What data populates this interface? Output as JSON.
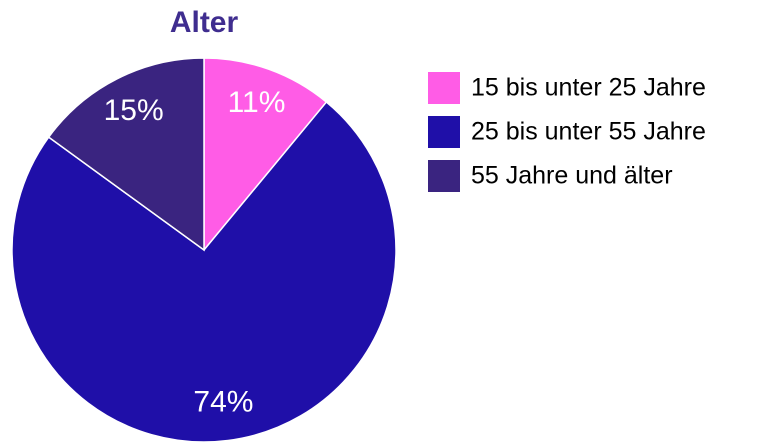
{
  "chart_data": {
    "type": "pie",
    "title": "Alter",
    "categories": [
      "15 bis unter 25 Jahre",
      "25 bis unter 55 Jahre",
      "55 Jahre und älter"
    ],
    "values": [
      11,
      74,
      15
    ],
    "value_labels": [
      "11%",
      "74%",
      "15%"
    ],
    "colors": [
      "#ff5ce6",
      "#1f0fa8",
      "#3a2480"
    ]
  }
}
